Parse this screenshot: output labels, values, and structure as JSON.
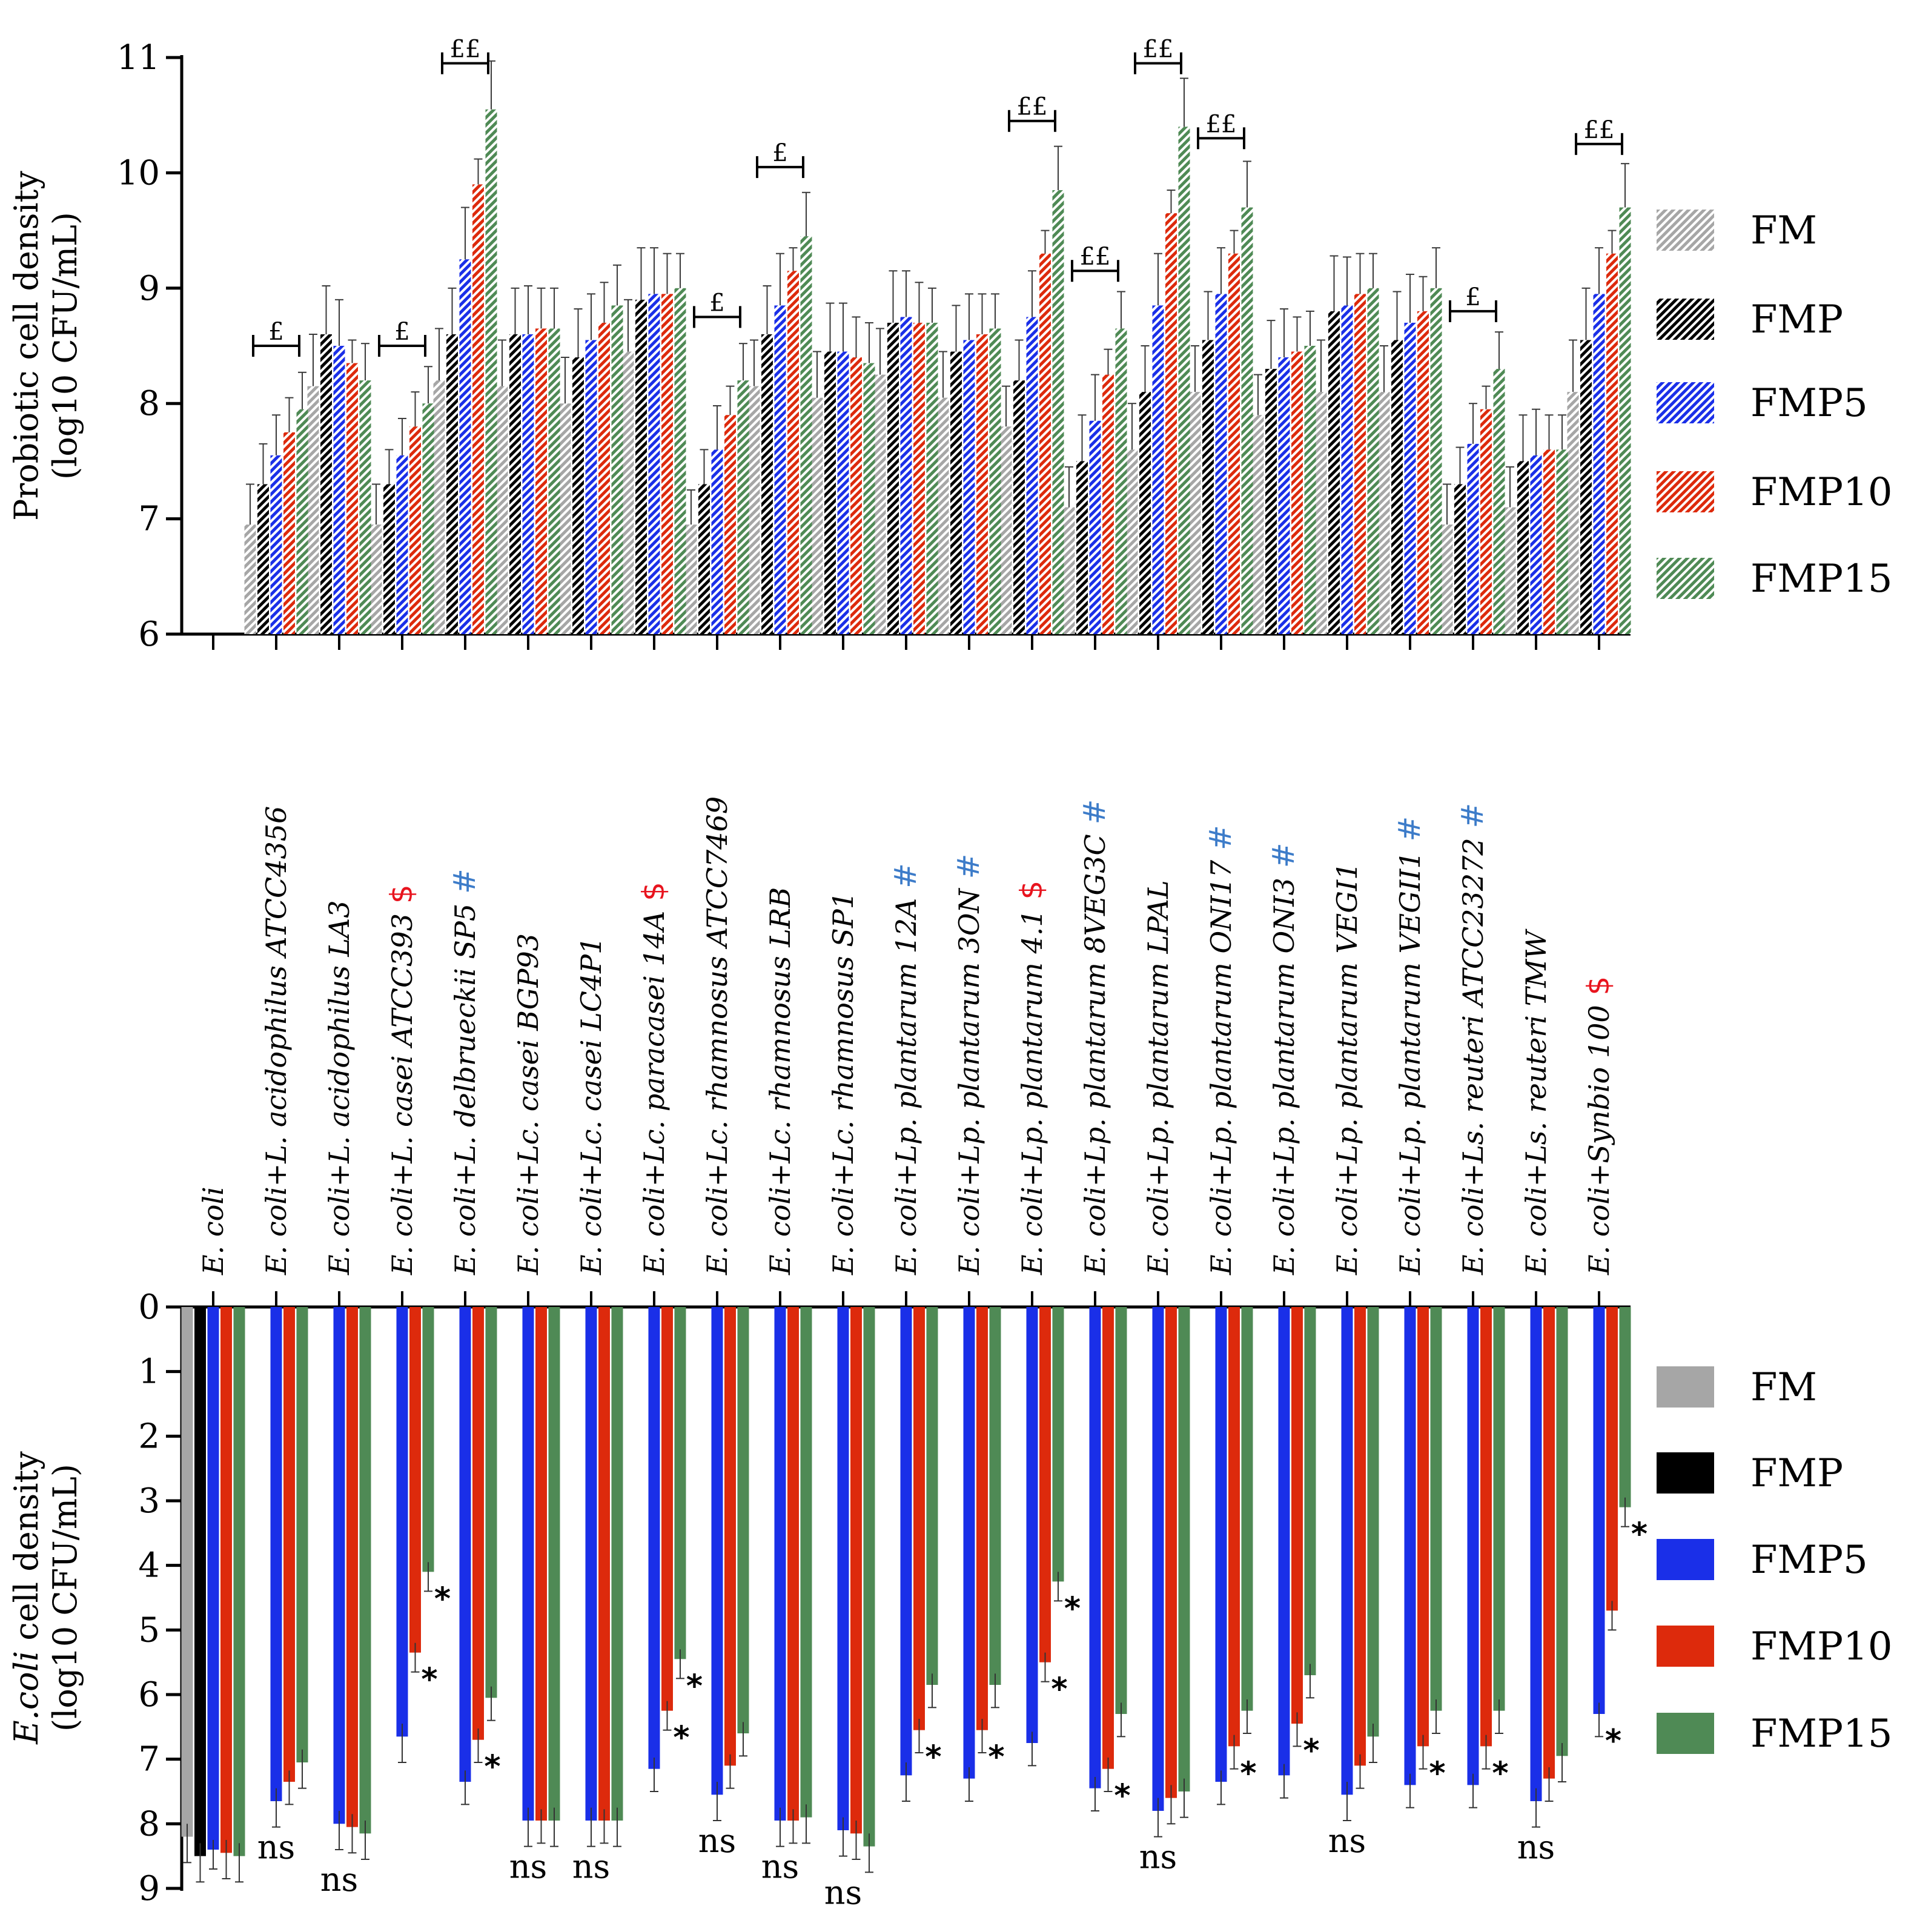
{
  "chart_data": [
    {
      "type": "bar",
      "name": "probiotic-panel",
      "ylabel_lines": [
        "Probiotic cell density",
        "(log10 CFU/mL)"
      ],
      "ylim": [
        6,
        11
      ],
      "yticks": [
        6,
        7,
        8,
        9,
        10,
        11
      ],
      "pattern": "hatched",
      "legend_position": "right",
      "series": [
        {
          "name": "FM",
          "color": "#a6a6a6",
          "values": [
            null,
            6.95,
            8.15,
            6.95,
            8.2,
            8.15,
            8.0,
            8.45,
            6.95,
            8.15,
            8.05,
            8.25,
            8.05,
            7.8,
            7.1,
            7.6,
            8.1,
            7.9,
            8.1,
            8.1,
            6.95,
            7.1,
            8.1
          ],
          "errors": [
            null,
            0.35,
            0.45,
            0.35,
            0.45,
            0.4,
            0.4,
            0.45,
            0.3,
            0.4,
            0.4,
            0.4,
            0.4,
            0.35,
            0.35,
            0.4,
            0.4,
            0.35,
            0.45,
            0.4,
            0.35,
            0.35,
            0.45
          ]
        },
        {
          "name": "FMP",
          "color": "#000000",
          "values": [
            null,
            7.3,
            8.6,
            7.3,
            8.6,
            8.6,
            8.4,
            8.9,
            7.3,
            8.6,
            8.45,
            8.7,
            8.45,
            8.2,
            7.5,
            8.1,
            8.55,
            8.3,
            8.8,
            8.55,
            7.3,
            7.5,
            8.55
          ],
          "errors": [
            null,
            0.35,
            0.42,
            0.3,
            0.4,
            0.4,
            0.42,
            0.45,
            0.3,
            0.42,
            0.42,
            0.45,
            0.4,
            0.35,
            0.4,
            0.4,
            0.42,
            0.42,
            0.48,
            0.42,
            0.32,
            0.4,
            0.45
          ]
        },
        {
          "name": "FMP5",
          "color": "#1a2fe8",
          "values": [
            null,
            7.55,
            8.5,
            7.55,
            9.25,
            8.6,
            8.55,
            8.95,
            7.6,
            8.85,
            8.45,
            8.75,
            8.55,
            8.75,
            7.85,
            8.85,
            8.95,
            8.4,
            8.85,
            8.7,
            7.65,
            7.55,
            8.95
          ],
          "errors": [
            null,
            0.35,
            0.4,
            0.32,
            0.45,
            0.42,
            0.4,
            0.4,
            0.38,
            0.45,
            0.42,
            0.4,
            0.4,
            0.4,
            0.4,
            0.45,
            0.4,
            0.42,
            0.42,
            0.42,
            0.35,
            0.4,
            0.4
          ]
        },
        {
          "name": "FMP10",
          "color": "#dd2a0c",
          "values": [
            null,
            7.75,
            8.35,
            7.8,
            9.9,
            8.65,
            8.7,
            8.95,
            7.9,
            9.15,
            8.4,
            8.7,
            8.6,
            9.3,
            8.25,
            9.65,
            9.3,
            8.45,
            8.95,
            8.8,
            7.95,
            7.6,
            9.3
          ],
          "errors": [
            null,
            0.3,
            0.2,
            0.3,
            0.22,
            0.35,
            0.35,
            0.35,
            0.25,
            0.2,
            0.35,
            0.35,
            0.35,
            0.2,
            0.22,
            0.2,
            0.2,
            0.3,
            0.35,
            0.3,
            0.2,
            0.3,
            0.2
          ]
        },
        {
          "name": "FMP15",
          "color": "#4f8a55",
          "values": [
            null,
            7.95,
            8.2,
            8.0,
            10.55,
            8.65,
            8.85,
            9.0,
            8.2,
            9.45,
            8.35,
            8.7,
            8.65,
            9.85,
            8.65,
            10.4,
            9.7,
            8.5,
            9.0,
            9.0,
            8.3,
            7.6,
            9.7
          ],
          "errors": [
            null,
            0.32,
            0.32,
            0.32,
            0.42,
            0.35,
            0.35,
            0.3,
            0.32,
            0.38,
            0.35,
            0.3,
            0.3,
            0.38,
            0.32,
            0.42,
            0.4,
            0.3,
            0.3,
            0.35,
            0.32,
            0.3,
            0.38
          ]
        }
      ],
      "annotations": [
        {
          "category_index": 1,
          "text": "£",
          "y": 8.5
        },
        {
          "category_index": 3,
          "text": "£",
          "y": 8.5
        },
        {
          "category_index": 4,
          "text": "££",
          "y": 10.95
        },
        {
          "category_index": 8,
          "text": "£",
          "y": 8.75
        },
        {
          "category_index": 9,
          "text": "£",
          "y": 10.05
        },
        {
          "category_index": 13,
          "text": "££",
          "y": 10.45
        },
        {
          "category_index": 14,
          "text": "££",
          "y": 9.15
        },
        {
          "category_index": 15,
          "text": "££",
          "y": 10.95
        },
        {
          "category_index": 16,
          "text": "££",
          "y": 10.3
        },
        {
          "category_index": 20,
          "text": "£",
          "y": 8.8
        },
        {
          "category_index": 22,
          "text": "££",
          "y": 10.25
        }
      ]
    },
    {
      "type": "bar",
      "name": "ecoli-panel",
      "ylabel_lines": [
        {
          "italic": "E.coli",
          "rest": " cell density"
        },
        "(log10 CFU/mL)"
      ],
      "ylim": [
        0,
        9
      ],
      "yticks": [
        0,
        1,
        2,
        3,
        4,
        5,
        6,
        7,
        8,
        9
      ],
      "inverted": true,
      "legend_position": "right",
      "series": [
        {
          "name": "FM",
          "color": "#a6a6a6",
          "values": [
            8.2,
            null,
            null,
            null,
            null,
            null,
            null,
            null,
            null,
            null,
            null,
            null,
            null,
            null,
            null,
            null,
            null,
            null,
            null,
            null,
            null,
            null,
            null
          ],
          "errors": [
            0.4,
            null,
            null,
            null,
            null,
            null,
            null,
            null,
            null,
            null,
            null,
            null,
            null,
            null,
            null,
            null,
            null,
            null,
            null,
            null,
            null,
            null,
            null
          ]
        },
        {
          "name": "FMP",
          "color": "#000000",
          "values": [
            8.5,
            null,
            null,
            null,
            null,
            null,
            null,
            null,
            null,
            null,
            null,
            null,
            null,
            null,
            null,
            null,
            null,
            null,
            null,
            null,
            null,
            null,
            null
          ],
          "errors": [
            0.4,
            null,
            null,
            null,
            null,
            null,
            null,
            null,
            null,
            null,
            null,
            null,
            null,
            null,
            null,
            null,
            null,
            null,
            null,
            null,
            null,
            null,
            null
          ]
        },
        {
          "name": "FMP5",
          "color": "#1a2fe8",
          "values": [
            8.4,
            7.65,
            8.0,
            6.65,
            7.35,
            7.95,
            7.95,
            7.15,
            7.55,
            7.95,
            8.1,
            7.25,
            7.3,
            6.75,
            7.45,
            7.8,
            7.35,
            7.25,
            7.55,
            7.4,
            7.4,
            7.65,
            6.3
          ],
          "errors": [
            0.3,
            0.4,
            0.4,
            0.4,
            0.35,
            0.4,
            0.4,
            0.35,
            0.4,
            0.4,
            0.4,
            0.4,
            0.35,
            0.35,
            0.35,
            0.4,
            0.35,
            0.35,
            0.4,
            0.35,
            0.35,
            0.4,
            0.35
          ]
        },
        {
          "name": "FMP10",
          "color": "#dd2a0c",
          "values": [
            8.45,
            7.35,
            8.05,
            5.35,
            6.7,
            7.95,
            7.95,
            6.25,
            7.1,
            7.95,
            8.15,
            6.55,
            6.55,
            5.5,
            7.15,
            7.6,
            6.8,
            6.45,
            7.1,
            6.8,
            6.8,
            7.3,
            4.7
          ],
          "errors": [
            0.4,
            0.35,
            0.4,
            0.3,
            0.35,
            0.35,
            0.35,
            0.3,
            0.35,
            0.35,
            0.4,
            0.35,
            0.35,
            0.3,
            0.35,
            0.4,
            0.35,
            0.35,
            0.35,
            0.35,
            0.35,
            0.35,
            0.3
          ]
        },
        {
          "name": "FMP15",
          "color": "#4f8a55",
          "values": [
            8.5,
            7.05,
            8.15,
            4.1,
            6.05,
            7.95,
            7.95,
            5.45,
            6.6,
            7.9,
            8.35,
            5.85,
            5.85,
            4.25,
            6.3,
            7.5,
            6.25,
            5.7,
            6.65,
            6.25,
            6.25,
            6.95,
            3.1
          ],
          "errors": [
            0.4,
            0.4,
            0.4,
            0.3,
            0.35,
            0.4,
            0.4,
            0.3,
            0.35,
            0.4,
            0.4,
            0.35,
            0.35,
            0.3,
            0.35,
            0.4,
            0.35,
            0.35,
            0.4,
            0.35,
            0.35,
            0.4,
            0.3
          ]
        }
      ],
      "annotations": [
        {
          "category_index": 1,
          "text": "ns"
        },
        {
          "category_index": 2,
          "text": "ns"
        },
        {
          "category_index": 3,
          "text": "*",
          "series": "FMP10"
        },
        {
          "category_index": 3,
          "text": "*",
          "series": "FMP15"
        },
        {
          "category_index": 4,
          "text": "*",
          "series": "FMP10"
        },
        {
          "category_index": 5,
          "text": "ns"
        },
        {
          "category_index": 6,
          "text": "ns"
        },
        {
          "category_index": 7,
          "text": "*",
          "series": "FMP10"
        },
        {
          "category_index": 7,
          "text": "*",
          "series": "FMP15"
        },
        {
          "category_index": 8,
          "text": "ns"
        },
        {
          "category_index": 9,
          "text": "ns"
        },
        {
          "category_index": 10,
          "text": "ns"
        },
        {
          "category_index": 11,
          "text": "*",
          "series": "FMP10"
        },
        {
          "category_index": 12,
          "text": "*",
          "series": "FMP10"
        },
        {
          "category_index": 13,
          "text": "*",
          "series": "FMP10"
        },
        {
          "category_index": 13,
          "text": "*",
          "series": "FMP15"
        },
        {
          "category_index": 14,
          "text": "*",
          "series": "FMP10"
        },
        {
          "category_index": 15,
          "text": "ns"
        },
        {
          "category_index": 16,
          "text": "*",
          "series": "FMP10"
        },
        {
          "category_index": 17,
          "text": "*",
          "series": "FMP10"
        },
        {
          "category_index": 18,
          "text": "ns"
        },
        {
          "category_index": 19,
          "text": "*",
          "series": "FMP10"
        },
        {
          "category_index": 20,
          "text": "*",
          "series": "FMP10"
        },
        {
          "category_index": 21,
          "text": "ns"
        },
        {
          "category_index": 22,
          "text": "*",
          "series": "FMP5"
        },
        {
          "category_index": 22,
          "text": "*",
          "series": "FMP15"
        }
      ]
    }
  ],
  "categories": [
    {
      "label": "E. coli",
      "mark": null
    },
    {
      "label": "E. coli+L. acidophilus ATCC4356",
      "mark": null
    },
    {
      "label": "E. coli+L. acidophilus LA3",
      "mark": null
    },
    {
      "label": "E. coli+L. casei ATCC393",
      "mark": "$"
    },
    {
      "label": "E. coli+L. delbrueckii SP5",
      "mark": "#"
    },
    {
      "label": "E. coli+Lc. casei BGP93",
      "mark": null
    },
    {
      "label": "E. coli+Lc. casei LC4P1",
      "mark": null
    },
    {
      "label": "E. coli+Lc. paracasei 14A",
      "mark": "$"
    },
    {
      "label": "E. coli+Lc. rhamnosus ATCC7469",
      "mark": null
    },
    {
      "label": "E. coli+Lc. rhamnosus LRB",
      "mark": null
    },
    {
      "label": "E. coli+Lc. rhamnosus SP1",
      "mark": null
    },
    {
      "label": "E. coli+Lp. plantarum 12A",
      "mark": "#"
    },
    {
      "label": "E. coli+Lp. plantarum 3ON",
      "mark": "#"
    },
    {
      "label": "E. coli+Lp. plantarum 4.1",
      "mark": "$"
    },
    {
      "label": "E. coli+Lp. plantarum 8VEG3C",
      "mark": "#"
    },
    {
      "label": "E. coli+Lp. plantarum LPAL",
      "mark": null
    },
    {
      "label": "E. coli+Lp. plantarum ONI17",
      "mark": "#"
    },
    {
      "label": "E. coli+Lp. plantarum ONI3",
      "mark": "#"
    },
    {
      "label": "E. coli+Lp. plantarum VEGI1",
      "mark": null
    },
    {
      "label": "E. coli+Lp. plantarum VEGII1",
      "mark": "#"
    },
    {
      "label": "E. coli+Ls. reuteri ATCC23272",
      "mark": "#"
    },
    {
      "label": "E. coli+Ls. reuteri TMW",
      "mark": null
    },
    {
      "label": "E. coli+Synbio 100",
      "mark": "$"
    }
  ],
  "mark_colors": {
    "$": "#e8141e",
    "#": "#3d7cc9"
  }
}
